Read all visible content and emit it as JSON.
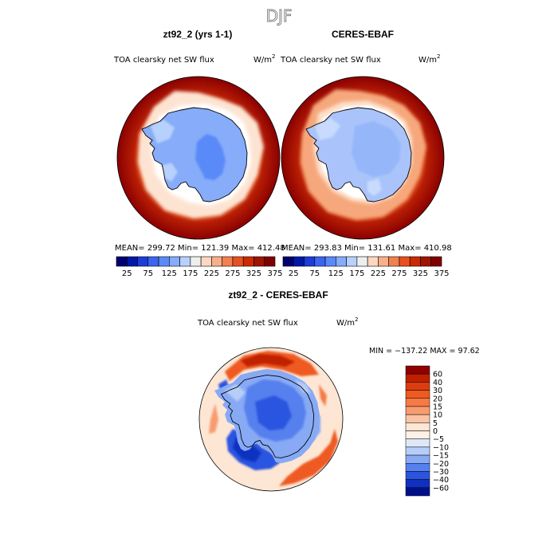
{
  "page_title": "DJF",
  "top_panels": [
    {
      "header": "zt92_2 (yrs 1-1)",
      "variable": "TOA clearsky net SW flux",
      "units": "W/m",
      "units_exp": "2",
      "stats": "MEAN= 299.72  Min= 121.39  Max= 412.48"
    },
    {
      "header": "CERES-EBAF",
      "variable": "TOA clearsky net SW flux",
      "units": "W/m",
      "units_exp": "2",
      "stats": "MEAN= 293.83  Min= 131.61  Max= 410.98"
    }
  ],
  "diff_panel": {
    "header": "zt92_2 - CERES-EBAF",
    "variable": "TOA clearsky net SW flux",
    "units": "W/m",
    "units_exp": "2",
    "minmax": "MIN = −137.22  MAX =  97.62"
  },
  "chart_data": [
    {
      "type": "heatmap",
      "title": "zt92_2 (yrs 1-1)",
      "projection": "south-polar-stereographic",
      "mean": 299.72,
      "min": 121.39,
      "max": 412.48,
      "colorbar_orientation": "horizontal",
      "colorbar_labels": [
        "25",
        "75",
        "125",
        "175",
        "225",
        "275",
        "325",
        "375"
      ],
      "colors": [
        "#000070",
        "#0018a8",
        "#1c3cd8",
        "#3c64f0",
        "#5a8af8",
        "#86acfa",
        "#b8d0fc",
        "#eeeeee",
        "#fcd8c0",
        "#f8b08a",
        "#f28050",
        "#e85020",
        "#cc2a00",
        "#a01400",
        "#800000"
      ]
    },
    {
      "type": "heatmap",
      "title": "CERES-EBAF",
      "projection": "south-polar-stereographic",
      "mean": 293.83,
      "min": 131.61,
      "max": 410.98,
      "colorbar_orientation": "horizontal",
      "colorbar_labels": [
        "25",
        "75",
        "125",
        "175",
        "225",
        "275",
        "325",
        "375"
      ],
      "colors": [
        "#000070",
        "#0018a8",
        "#1c3cd8",
        "#3c64f0",
        "#5a8af8",
        "#86acfa",
        "#b8d0fc",
        "#eeeeee",
        "#fcd8c0",
        "#f8b08a",
        "#f28050",
        "#e85020",
        "#cc2a00",
        "#a01400",
        "#800000"
      ]
    },
    {
      "type": "heatmap",
      "title": "zt92_2 - CERES-EBAF",
      "projection": "south-polar-stereographic",
      "min": -137.22,
      "max": 97.62,
      "colorbar_orientation": "vertical",
      "colorbar_labels": [
        "60",
        "40",
        "30",
        "20",
        "15",
        "10",
        "5",
        "0",
        "−5",
        "−10",
        "−15",
        "−20",
        "−30",
        "−40",
        "−60"
      ],
      "colors": [
        "#900000",
        "#c02000",
        "#dd3c10",
        "#ee5a20",
        "#f57a46",
        "#f89c70",
        "#fbc4a4",
        "#fde6d4",
        "#fdf0e6",
        "#dfe8f8",
        "#b6cdf8",
        "#88aaf5",
        "#5680ee",
        "#2c54e0",
        "#1030c0",
        "#00108a"
      ]
    }
  ]
}
